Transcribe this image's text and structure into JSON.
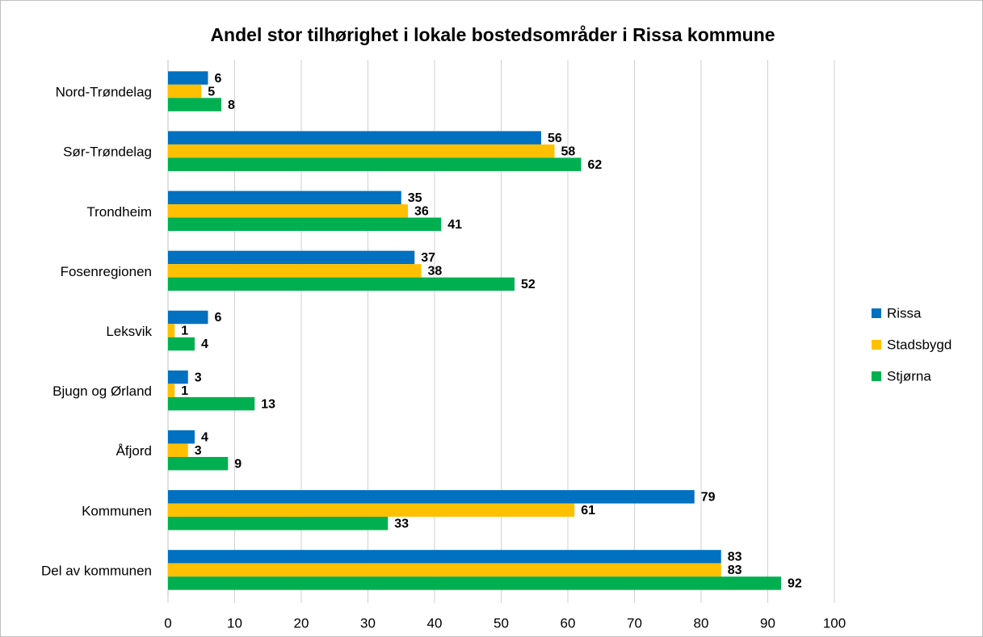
{
  "chart_data": {
    "type": "barh",
    "title": "Andel stor tilhørighet i lokale bostedsområder i Rissa kommune",
    "categories": [
      "Nord-Trøndelag",
      "Sør-Trøndelag",
      "Trondheim",
      "Fosenregionen",
      "Leksvik",
      "Bjugn og Ørland",
      "Åfjord",
      "Kommunen",
      "Del av kommunen"
    ],
    "series": [
      {
        "name": "Rissa",
        "color": "#0070c0",
        "values": [
          6,
          56,
          35,
          37,
          6,
          3,
          4,
          79,
          83
        ]
      },
      {
        "name": "Stadsbygd",
        "color": "#ffc000",
        "values": [
          5,
          58,
          36,
          38,
          1,
          1,
          3,
          61,
          83
        ]
      },
      {
        "name": "Stjørna",
        "color": "#00b050",
        "values": [
          8,
          62,
          41,
          52,
          4,
          13,
          9,
          33,
          92
        ]
      }
    ],
    "xlim": [
      0,
      100
    ],
    "xticks": [
      0,
      10,
      20,
      30,
      40,
      50,
      60,
      70,
      80,
      90,
      100
    ],
    "grid": true,
    "legend": "right"
  }
}
